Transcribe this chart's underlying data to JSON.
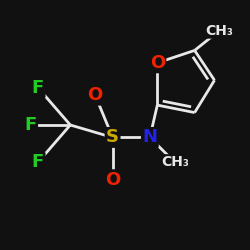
{
  "background_color": "#111111",
  "bond_color": "#e8e8e8",
  "atom_colors": {
    "F": "#22cc22",
    "S": "#ccaa00",
    "N": "#2222ee",
    "O": "#ee2200",
    "C": "#e8e8e8"
  },
  "font_size_atom": 13,
  "font_size_small": 10,
  "lw": 2.0
}
